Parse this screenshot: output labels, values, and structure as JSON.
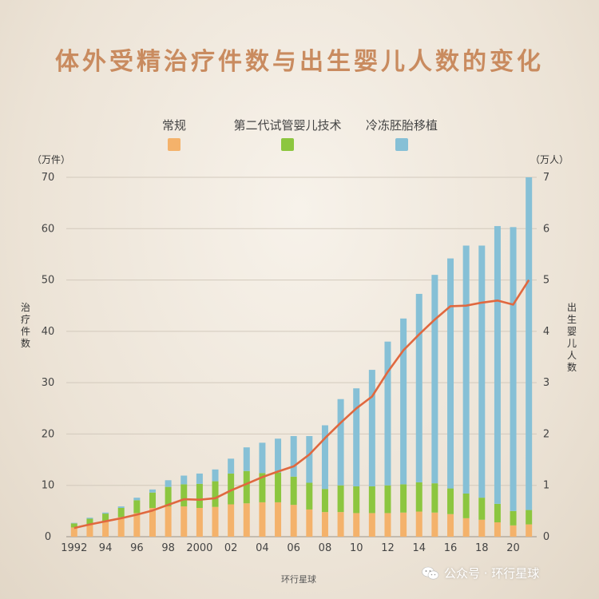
{
  "chart_data": {
    "type": "bar",
    "title": "体外受精治疗件数与出生婴儿人数的变化",
    "left_unit": "（万件）",
    "right_unit": "（万人）",
    "ylabel_left": "治疗件数",
    "ylabel_right": "出生婴儿人数",
    "ylim_left": [
      0,
      70
    ],
    "ylim_right": [
      0,
      7
    ],
    "yticks_left": [
      0,
      10,
      20,
      30,
      40,
      50,
      60,
      70
    ],
    "yticks_right": [
      0,
      1,
      2,
      3,
      4,
      5,
      6,
      7
    ],
    "x": [
      1992,
      1993,
      1994,
      1995,
      1996,
      1997,
      1998,
      1999,
      2000,
      2001,
      2002,
      2003,
      2004,
      2005,
      2006,
      2007,
      2008,
      2009,
      2010,
      2011,
      2012,
      2013,
      2014,
      2015,
      2016,
      2017,
      2018,
      2019,
      2020,
      2021
    ],
    "xtick_labels": [
      {
        "x": 1992,
        "label": "1992"
      },
      {
        "x": 1994,
        "label": "94"
      },
      {
        "x": 1996,
        "label": "96"
      },
      {
        "x": 1998,
        "label": "98"
      },
      {
        "x": 2000,
        "label": "2000"
      },
      {
        "x": 2002,
        "label": "02"
      },
      {
        "x": 2004,
        "label": "04"
      },
      {
        "x": 2006,
        "label": "06"
      },
      {
        "x": 2008,
        "label": "08"
      },
      {
        "x": 2010,
        "label": "10"
      },
      {
        "x": 2012,
        "label": "12"
      },
      {
        "x": 2014,
        "label": "14"
      },
      {
        "x": 2016,
        "label": "16"
      },
      {
        "x": 2018,
        "label": "18"
      },
      {
        "x": 2020,
        "label": "20"
      }
    ],
    "stacked": true,
    "series": [
      {
        "name": "常规",
        "color": "#f4b26b",
        "axis": "left",
        "values": [
          1.8,
          2.4,
          3.0,
          3.8,
          4.6,
          5.6,
          5.9,
          5.9,
          5.6,
          5.8,
          6.3,
          6.5,
          6.7,
          6.7,
          6.2,
          5.3,
          4.8,
          4.8,
          4.6,
          4.6,
          4.6,
          4.7,
          4.9,
          4.7,
          4.4,
          3.6,
          3.3,
          2.8,
          2.2,
          2.4
        ]
      },
      {
        "name": "第二代试管婴儿技术",
        "color": "#8cc63f",
        "axis": "left",
        "values": [
          0.8,
          1.1,
          1.5,
          1.8,
          2.5,
          3.0,
          3.8,
          4.3,
          4.7,
          5.0,
          6.0,
          6.3,
          5.7,
          5.8,
          5.5,
          5.2,
          4.5,
          5.2,
          5.2,
          5.2,
          5.4,
          5.5,
          5.7,
          5.7,
          5.0,
          4.8,
          4.3,
          3.6,
          2.8,
          2.8
        ]
      },
      {
        "name": "冷冻胚胎移植",
        "color": "#86c0d6",
        "axis": "left",
        "values": [
          0.1,
          0.2,
          0.2,
          0.3,
          0.5,
          0.6,
          1.3,
          1.7,
          2.0,
          2.3,
          2.9,
          4.6,
          5.9,
          6.6,
          7.9,
          9.1,
          12.4,
          16.8,
          19.1,
          22.7,
          28.0,
          32.3,
          36.7,
          40.6,
          44.8,
          48.3,
          49.1,
          54.1,
          55.3,
          64.8
        ]
      },
      {
        "name": "",
        "type": "line",
        "color": "#e0683f",
        "axis": "right",
        "values": [
          0.17,
          0.24,
          0.3,
          0.36,
          0.43,
          0.51,
          0.62,
          0.73,
          0.72,
          0.75,
          0.9,
          1.03,
          1.16,
          1.27,
          1.37,
          1.6,
          1.92,
          2.22,
          2.5,
          2.73,
          3.21,
          3.63,
          3.94,
          4.23,
          4.49,
          4.5,
          4.56,
          4.6,
          4.52,
          5.0
        ]
      }
    ],
    "grid": true,
    "legend_position": "top"
  },
  "source": "环行星球",
  "watermark": {
    "icon": "wechat-icon",
    "text": "公众号 · 环行星球"
  }
}
